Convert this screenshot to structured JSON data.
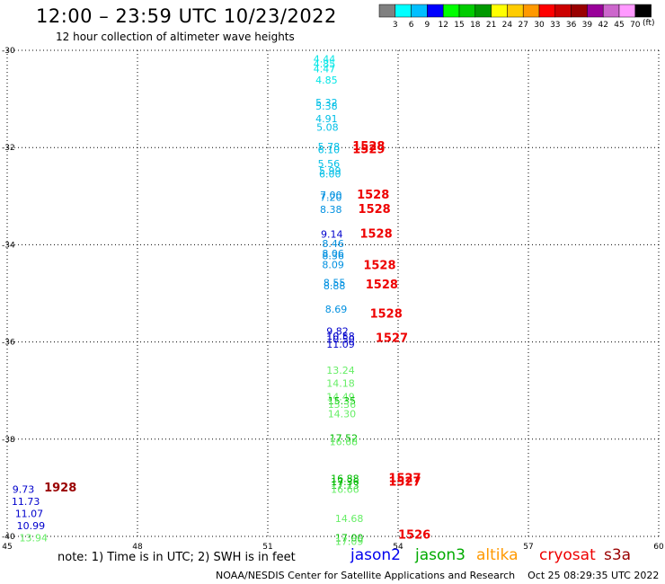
{
  "header": {
    "title": "12:00 – 23:59 UTC 10/23/2022",
    "subtitle": "12 hour collection of altimeter wave heights"
  },
  "legend": {
    "unit": "(ft)",
    "bins": [
      {
        "label": "",
        "color": "#808080"
      },
      {
        "label": "3",
        "color": "#00ffff"
      },
      {
        "label": "6",
        "color": "#00bfff"
      },
      {
        "label": "9",
        "color": "#0000ff"
      },
      {
        "label": "12",
        "color": "#00ff00"
      },
      {
        "label": "15",
        "color": "#00cc00"
      },
      {
        "label": "18",
        "color": "#009900"
      },
      {
        "label": "21",
        "color": "#ffff00"
      },
      {
        "label": "24",
        "color": "#ffcc00"
      },
      {
        "label": "27",
        "color": "#ff9900"
      },
      {
        "label": "30",
        "color": "#ff0000"
      },
      {
        "label": "33",
        "color": "#cc0000"
      },
      {
        "label": "36",
        "color": "#990000"
      },
      {
        "label": "39",
        "color": "#990099"
      },
      {
        "label": "42",
        "color": "#cc66cc"
      },
      {
        "label": "45",
        "color": "#ff99ff"
      },
      {
        "label": "70",
        "color": "#000000"
      }
    ]
  },
  "footer": {
    "note": "note: 1) Time is in UTC; 2) SWH is in feet",
    "credit": "NOAA/NESDIS Center for Satellite Applications and Research    Oct 25 08:29:35 UTC 2022",
    "satellites": [
      {
        "name": "jason2",
        "color": "#0000ee"
      },
      {
        "name": "jason3",
        "color": "#00aa00"
      },
      {
        "name": "altika",
        "color": "#ff9900"
      },
      {
        "name": "cryosat",
        "color": "#ee0000"
      },
      {
        "name": "s3a",
        "color": "#990000"
      }
    ]
  },
  "chart_data": {
    "type": "scatter",
    "xlim": [
      45,
      60
    ],
    "ylim": [
      -40,
      -30
    ],
    "xticks": [
      "45",
      "48",
      "51",
      "54",
      "57",
      "60"
    ],
    "yticks": [
      "-30",
      "-32",
      "-34",
      "-36",
      "-38",
      "-40"
    ],
    "grid": true,
    "wave_heights": [
      {
        "x": 52.05,
        "y": -30.25,
        "text": "4.44",
        "color": "#00e6e6"
      },
      {
        "x": 52.05,
        "y": -30.35,
        "text": "4.85",
        "color": "#00e6e6"
      },
      {
        "x": 52.05,
        "y": -30.45,
        "text": "4.47",
        "color": "#00e6e6"
      },
      {
        "x": 52.1,
        "y": -30.68,
        "text": "4.85",
        "color": "#00e6e6"
      },
      {
        "x": 52.1,
        "y": -31.15,
        "text": "5.32",
        "color": "#00bfe6"
      },
      {
        "x": 52.1,
        "y": -31.22,
        "text": "5.38",
        "color": "#00bfe6"
      },
      {
        "x": 52.1,
        "y": -31.48,
        "text": "4.91",
        "color": "#00bfe6"
      },
      {
        "x": 52.12,
        "y": -31.65,
        "text": "5.08",
        "color": "#00bfe6"
      },
      {
        "x": 52.15,
        "y": -32.05,
        "text": "5.78",
        "color": "#00bfe6"
      },
      {
        "x": 52.15,
        "y": -32.12,
        "text": "6.10",
        "color": "#00bfe6"
      },
      {
        "x": 52.15,
        "y": -32.4,
        "text": "5.56",
        "color": "#00bfe6"
      },
      {
        "x": 52.18,
        "y": -32.55,
        "text": "5.99",
        "color": "#00bfe6"
      },
      {
        "x": 52.18,
        "y": -32.62,
        "text": "6.00",
        "color": "#00bfe6"
      },
      {
        "x": 52.2,
        "y": -33.05,
        "text": "7.00",
        "color": "#0090e0"
      },
      {
        "x": 52.2,
        "y": -33.1,
        "text": "7.20",
        "color": "#0090e0"
      },
      {
        "x": 52.2,
        "y": -33.35,
        "text": "8.38",
        "color": "#0090e0"
      },
      {
        "x": 52.22,
        "y": -33.85,
        "text": "9.14",
        "color": "#0000cc"
      },
      {
        "x": 52.25,
        "y": -34.05,
        "text": "8.46",
        "color": "#0090e0"
      },
      {
        "x": 52.25,
        "y": -34.25,
        "text": "8.06",
        "color": "#0090e0"
      },
      {
        "x": 52.25,
        "y": -34.3,
        "text": "8.36",
        "color": "#0090e0"
      },
      {
        "x": 52.25,
        "y": -34.48,
        "text": "8.09",
        "color": "#0090e0"
      },
      {
        "x": 52.28,
        "y": -34.85,
        "text": "8.55",
        "color": "#0090e0"
      },
      {
        "x": 52.28,
        "y": -34.92,
        "text": "8.88",
        "color": "#0090e0"
      },
      {
        "x": 52.32,
        "y": -35.4,
        "text": "8.69",
        "color": "#0090e0"
      },
      {
        "x": 52.35,
        "y": -35.85,
        "text": "9.82",
        "color": "#0000cc"
      },
      {
        "x": 52.35,
        "y": -35.95,
        "text": "10.58",
        "color": "#0000cc"
      },
      {
        "x": 52.35,
        "y": -36.02,
        "text": "10.50",
        "color": "#0000cc"
      },
      {
        "x": 52.35,
        "y": -36.12,
        "text": "11.09",
        "color": "#0000cc"
      },
      {
        "x": 52.35,
        "y": -36.65,
        "text": "13.24",
        "color": "#66ee66"
      },
      {
        "x": 52.35,
        "y": -36.92,
        "text": "14.18",
        "color": "#66ee66"
      },
      {
        "x": 52.35,
        "y": -37.2,
        "text": "14.49",
        "color": "#66ee66"
      },
      {
        "x": 52.38,
        "y": -37.28,
        "text": "15.35",
        "color": "#00bb00"
      },
      {
        "x": 52.38,
        "y": -37.36,
        "text": "15.36",
        "color": "#66ee66"
      },
      {
        "x": 52.38,
        "y": -37.55,
        "text": "14.30",
        "color": "#66ee66"
      },
      {
        "x": 52.42,
        "y": -38.05,
        "text": "17.52",
        "color": "#00bb00"
      },
      {
        "x": 52.42,
        "y": -38.12,
        "text": "16.68",
        "color": "#66ee66"
      },
      {
        "x": 52.45,
        "y": -38.88,
        "text": "16.88",
        "color": "#00bb00"
      },
      {
        "x": 52.45,
        "y": -38.95,
        "text": "17.36",
        "color": "#00bb00"
      },
      {
        "x": 52.45,
        "y": -39.02,
        "text": "17.13",
        "color": "#00bb00"
      },
      {
        "x": 52.45,
        "y": -39.1,
        "text": "16.66",
        "color": "#66ee66"
      },
      {
        "x": 52.55,
        "y": -39.7,
        "text": "14.68",
        "color": "#66ee66"
      },
      {
        "x": 52.55,
        "y": -40.1,
        "text": "17.00",
        "color": "#00bb00"
      },
      {
        "x": 52.55,
        "y": -40.18,
        "text": "17.09",
        "color": "#66ee66"
      },
      {
        "x": 45.12,
        "y": -39.1,
        "text": "9.73",
        "color": "#0000cc"
      },
      {
        "x": 45.1,
        "y": -39.35,
        "text": "11.73",
        "color": "#0000cc"
      },
      {
        "x": 45.18,
        "y": -39.6,
        "text": "11.07",
        "color": "#0000cc"
      },
      {
        "x": 45.22,
        "y": -39.85,
        "text": "10.99",
        "color": "#0000cc"
      },
      {
        "x": 45.28,
        "y": -40.1,
        "text": "13.94",
        "color": "#66ee66"
      }
    ],
    "pass_times": [
      {
        "x": 52.95,
        "y": -32.05,
        "text": "1528",
        "color": "#ee0000"
      },
      {
        "x": 52.95,
        "y": -32.12,
        "text": "1529",
        "color": "#ee0000"
      },
      {
        "x": 53.05,
        "y": -33.05,
        "text": "1528",
        "color": "#ee0000"
      },
      {
        "x": 53.08,
        "y": -33.35,
        "text": "1528",
        "color": "#ee0000"
      },
      {
        "x": 53.12,
        "y": -33.85,
        "text": "1528",
        "color": "#ee0000"
      },
      {
        "x": 53.2,
        "y": -34.5,
        "text": "1528",
        "color": "#ee0000"
      },
      {
        "x": 53.25,
        "y": -34.9,
        "text": "1528",
        "color": "#ee0000"
      },
      {
        "x": 53.35,
        "y": -35.5,
        "text": "1528",
        "color": "#ee0000"
      },
      {
        "x": 53.48,
        "y": -36.0,
        "text": "1527",
        "color": "#ee0000"
      },
      {
        "x": 53.78,
        "y": -38.88,
        "text": "1527",
        "color": "#ee0000"
      },
      {
        "x": 53.78,
        "y": -38.96,
        "text": "1527",
        "color": "#ee0000"
      },
      {
        "x": 54.0,
        "y": -40.05,
        "text": "1526",
        "color": "#ee0000"
      },
      {
        "x": 45.85,
        "y": -39.08,
        "text": "1928",
        "color": "#990000"
      }
    ]
  }
}
